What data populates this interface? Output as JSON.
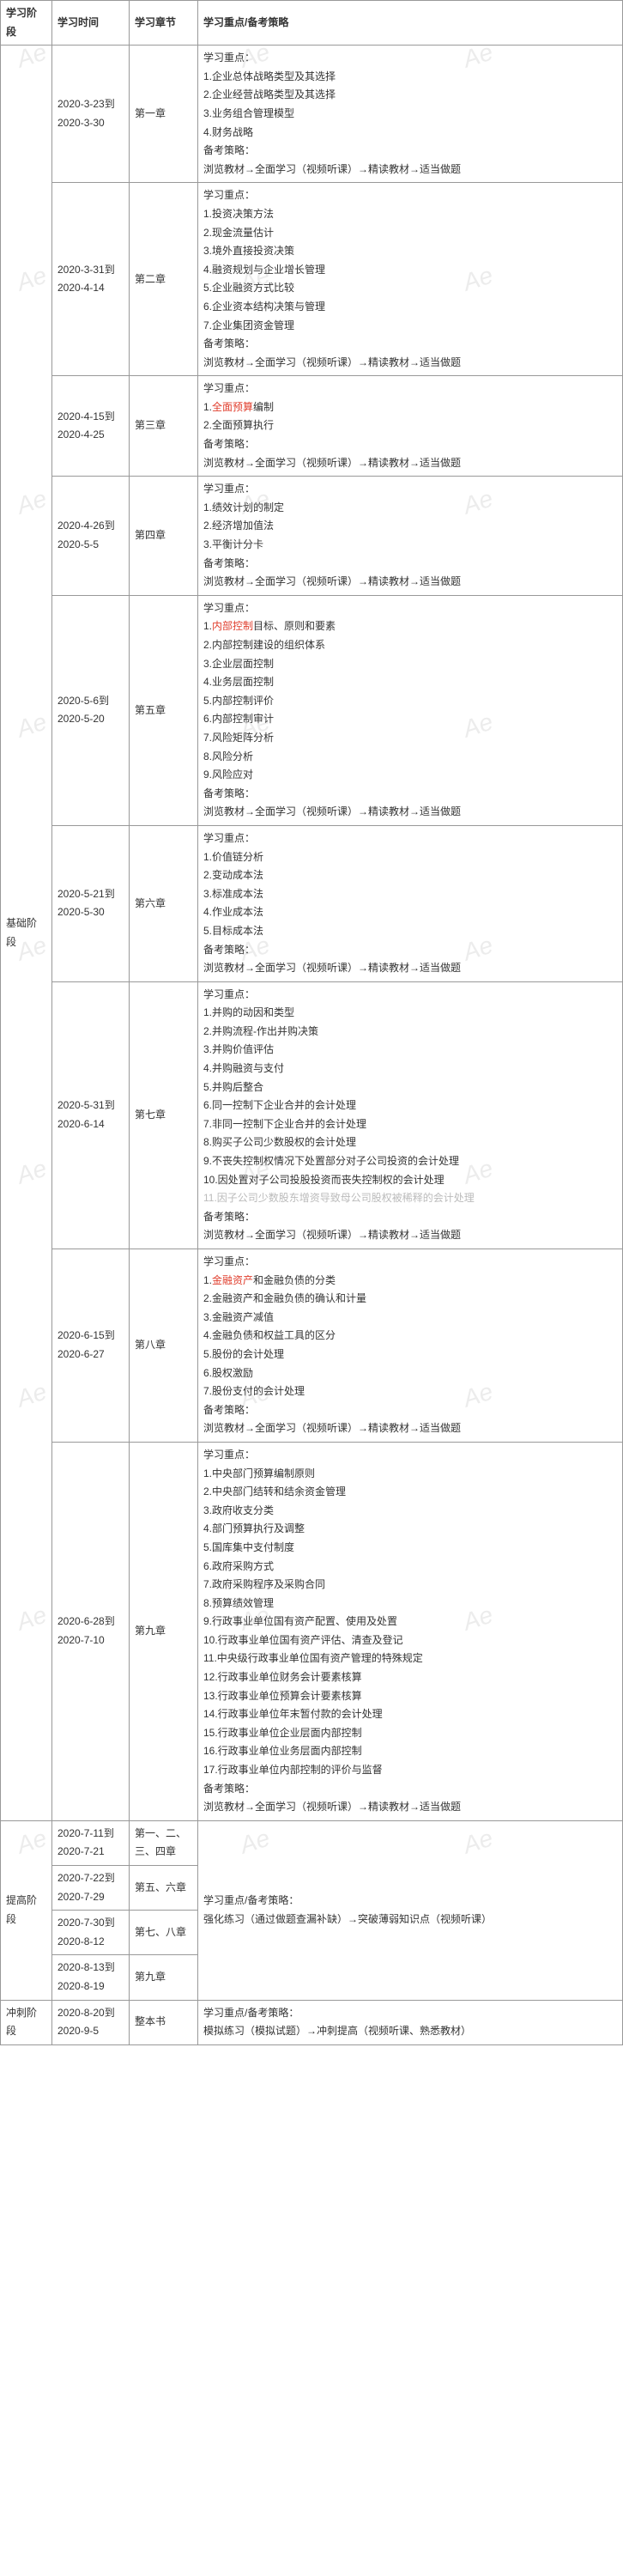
{
  "headers": {
    "stage": "学习阶段",
    "time": "学习时间",
    "chapter": "学习章节",
    "content": "学习重点/备考策略"
  },
  "stages": [
    {
      "name": "基础阶段",
      "rows": [
        {
          "time": "2020-3-23到2020-3-30",
          "chapter": "第一章",
          "lead": "学习重点：",
          "points": [
            "1.企业总体战略类型及其选择",
            "2.企业经营战略类型及其选择",
            "3.业务组合管理模型",
            "4.财务战略"
          ],
          "strategyLabel": "备考策略：",
          "strategy": "浏览教材→全面学习（视频听课）→精读教材→适当做题"
        },
        {
          "time": "2020-3-31到2020-4-14",
          "chapter": "第二章",
          "lead": "学习重点：",
          "points": [
            "1.投资决策方法",
            "2.现金流量估计",
            "3.境外直接投资决策",
            "4.融资规划与企业增长管理",
            "5.企业融资方式比较",
            "6.企业资本结构决策与管理",
            "7.企业集团资金管理"
          ],
          "strategyLabel": "备考策略：",
          "strategy": "浏览教材→全面学习（视频听课）→精读教材→适当做题"
        },
        {
          "time": "2020-4-15到2020-4-25",
          "chapter": "第三章",
          "lead": "学习重点：",
          "points": [
            {
              "text": "1.全面预算编制",
              "emph": "全面预算"
            },
            "2.全面预算执行"
          ],
          "strategyLabel": "备考策略：",
          "strategy": "浏览教材→全面学习（视频听课）→精读教材→适当做题"
        },
        {
          "time": "2020-4-26到2020-5-5",
          "chapter": "第四章",
          "lead": "学习重点：",
          "points": [
            "1.绩效计划的制定",
            "2.经济增加值法",
            "3.平衡计分卡"
          ],
          "strategyLabel": "备考策略：",
          "strategy": "浏览教材→全面学习（视频听课）→精读教材→适当做题"
        },
        {
          "time": "2020-5-6到2020-5-20",
          "chapter": "第五章",
          "lead": "学习重点：",
          "points": [
            {
              "text": "1.内部控制目标、原则和要素",
              "emph": "内部控制"
            },
            "2.内部控制建设的组织体系",
            "3.企业层面控制",
            "4.业务层面控制",
            "5.内部控制评价",
            "6.内部控制审计",
            "7.风险矩阵分析",
            "8.风险分析",
            "9.风险应对"
          ],
          "strategyLabel": "备考策略：",
          "strategy": "浏览教材→全面学习（视频听课）→精读教材→适当做题"
        },
        {
          "time": "2020-5-21到2020-5-30",
          "chapter": "第六章",
          "lead": "学习重点：",
          "points": [
            "1.价值链分析",
            "2.变动成本法",
            "3.标准成本法",
            "4.作业成本法",
            "5.目标成本法"
          ],
          "strategyLabel": "备考策略：",
          "strategy": "浏览教材→全面学习（视频听课）→精读教材→适当做题"
        },
        {
          "time": "2020-5-31到2020-6-14",
          "chapter": "第七章",
          "lead": "学习重点：",
          "points": [
            "1.并购的动因和类型",
            "2.并购流程-作出并购决策",
            "3.并购价值评估",
            "4.并购融资与支付",
            "5.并购后整合",
            "6.同一控制下企业合并的会计处理",
            "7.非同一控制下企业合并的会计处理",
            "8.购买子公司少数股权的会计处理",
            "9.不丧失控制权情况下处置部分对子公司投资的会计处理",
            "10.因处置对子公司投股投资而丧失控制权的会计处理",
            {
              "text": "11.因子公司少数股东增资导致母公司股权被稀释的会计处理",
              "faded": true
            }
          ],
          "strategyLabel": "备考策略：",
          "strategy": "浏览教材→全面学习（视频听课）→精读教材→适当做题"
        },
        {
          "time": "2020-6-15到2020-6-27",
          "chapter": "第八章",
          "lead": "学习重点：",
          "points": [
            {
              "text": "1.金融资产和金融负债的分类",
              "emph": "金融资产"
            },
            "2.金融资产和金融负债的确认和计量",
            "3.金融资产减值",
            "4.金融负债和权益工具的区分",
            "5.股份的会计处理",
            "6.股权激励",
            "7.股份支付的会计处理"
          ],
          "strategyLabel": "备考策略：",
          "strategy": "浏览教材→全面学习（视频听课）→精读教材→适当做题"
        },
        {
          "time": "2020-6-28到2020-7-10",
          "chapter": "第九章",
          "lead": "学习重点：",
          "points": [
            "1.中央部门预算编制原则",
            "2.中央部门结转和结余资金管理",
            "3.政府收支分类",
            "4.部门预算执行及调整",
            "5.国库集中支付制度",
            "6.政府采购方式",
            "7.政府采购程序及采购合同",
            "8.预算绩效管理",
            "9.行政事业单位国有资产配置、使用及处置",
            "10.行政事业单位国有资产评估、清查及登记",
            "11.中央级行政事业单位国有资产管理的特殊规定",
            "12.行政事业单位财务会计要素核算",
            "13.行政事业单位预算会计要素核算",
            "14.行政事业单位年末暂付款的会计处理",
            "15.行政事业单位企业层面内部控制",
            "16.行政事业单位业务层面内部控制",
            "17.行政事业单位内部控制的评价与监督"
          ],
          "strategyLabel": "备考策略：",
          "strategy": "浏览教材→全面学习（视频听课）→精读教材→适当做题"
        }
      ]
    },
    {
      "name": "提高阶段",
      "sharedContent": {
        "lead": "学习重点/备考策略：",
        "text": "强化练习（通过做题查漏补缺）→突破薄弱知识点（视频听课）"
      },
      "rows": [
        {
          "time": "2020-7-11到2020-7-21",
          "chapter": "第一、二、三、四章"
        },
        {
          "time": "2020-7-22到2020-7-29",
          "chapter": "第五、六章"
        },
        {
          "time": "2020-7-30到2020-8-12",
          "chapter": "第七、八章"
        },
        {
          "time": "2020-8-13到2020-8-19",
          "chapter": "第九章"
        }
      ]
    },
    {
      "name": "冲刺阶段",
      "rows": [
        {
          "time": "2020-8-20到2020-9-5",
          "chapter": "整本书",
          "lead": "学习重点/备考策略：",
          "text": "模拟练习（模拟试题）→冲刺提高（视频听课、熟悉教材）"
        }
      ]
    }
  ]
}
